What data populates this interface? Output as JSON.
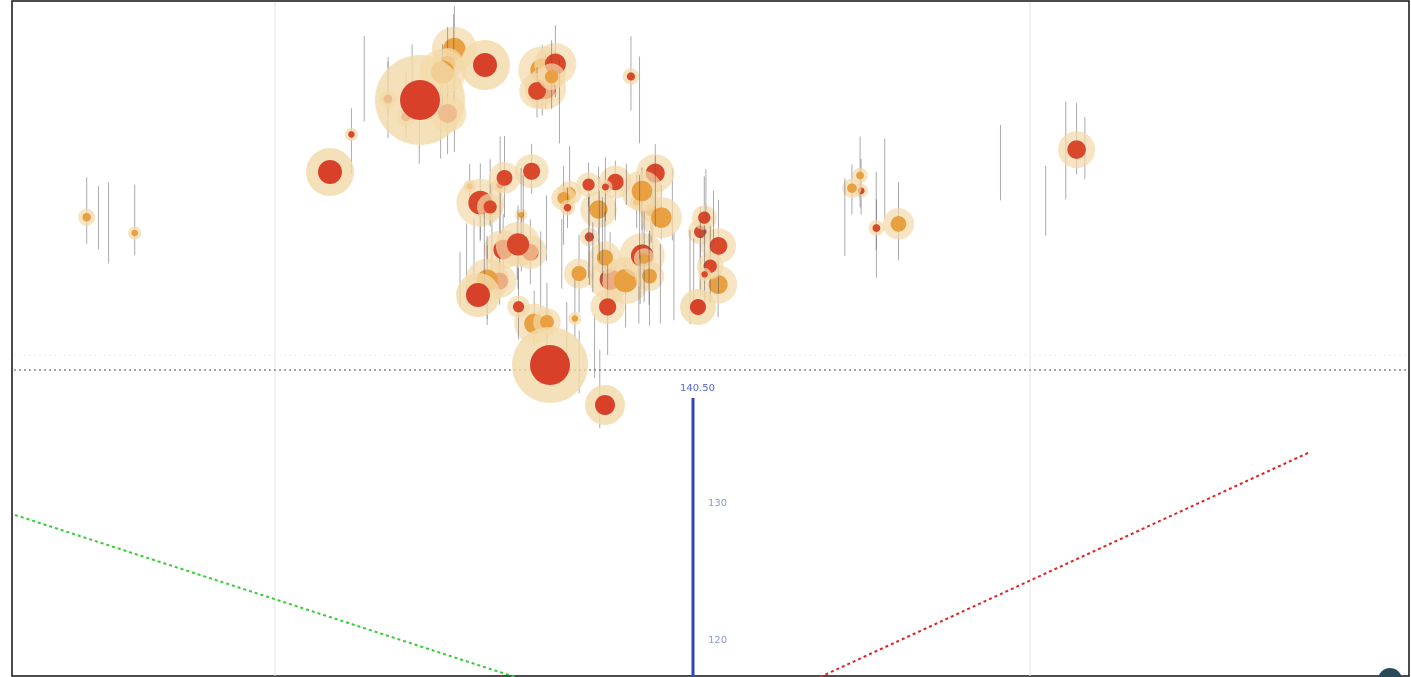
{
  "axes": {
    "blue_ticks": [
      "140.50",
      "130",
      "120"
    ]
  }
}
